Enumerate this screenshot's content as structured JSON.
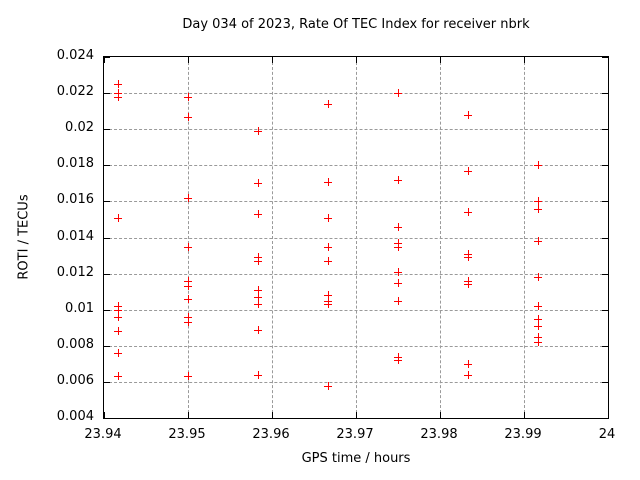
{
  "colors": {
    "marker": "#ff0000",
    "grid": "#9a9a9a",
    "axis": "#000000",
    "background": "#ffffff",
    "text": "#000000"
  },
  "chart_data": {
    "type": "scatter",
    "title": "Day 034 of 2023, Rate Of TEC Index for receiver nbrk",
    "xlabel": "GPS time / hours",
    "ylabel": "ROTI / TECUs",
    "xlim": [
      23.94,
      24
    ],
    "ylim": [
      0.004,
      0.024
    ],
    "xticks": [
      23.94,
      23.95,
      23.96,
      23.97,
      23.98,
      23.99,
      24
    ],
    "xtick_labels": [
      "23.94",
      "23.95",
      "23.96",
      "23.97",
      "23.98",
      "23.99",
      "24"
    ],
    "yticks": [
      0.004,
      0.006,
      0.008,
      0.01,
      0.012,
      0.014,
      0.016,
      0.018,
      0.02,
      0.022,
      0.024
    ],
    "ytick_labels": [
      "0.004",
      "0.006",
      "0.008",
      "0.01",
      "0.012",
      "0.014",
      "0.016",
      "0.018",
      "0.02",
      "0.022",
      "0.024"
    ],
    "grid": true,
    "legend": false,
    "marker": "plus",
    "series": [
      {
        "name": "ROTI",
        "points": [
          [
            23.9417,
            0.0225
          ],
          [
            23.9417,
            0.022
          ],
          [
            23.9417,
            0.0218
          ],
          [
            23.9417,
            0.0151
          ],
          [
            23.9417,
            0.0102
          ],
          [
            23.9417,
            0.01
          ],
          [
            23.9417,
            0.0096
          ],
          [
            23.9417,
            0.0088
          ],
          [
            23.9417,
            0.0076
          ],
          [
            23.9417,
            0.0063
          ],
          [
            23.95,
            0.0218
          ],
          [
            23.95,
            0.0207
          ],
          [
            23.95,
            0.0162
          ],
          [
            23.95,
            0.0135
          ],
          [
            23.95,
            0.0116
          ],
          [
            23.95,
            0.0113
          ],
          [
            23.95,
            0.0106
          ],
          [
            23.95,
            0.0096
          ],
          [
            23.95,
            0.0093
          ],
          [
            23.95,
            0.0063
          ],
          [
            23.9583,
            0.0199
          ],
          [
            23.9583,
            0.017
          ],
          [
            23.9583,
            0.0153
          ],
          [
            23.9583,
            0.0129
          ],
          [
            23.9583,
            0.0127
          ],
          [
            23.9583,
            0.0111
          ],
          [
            23.9583,
            0.0107
          ],
          [
            23.9583,
            0.0103
          ],
          [
            23.9583,
            0.0089
          ],
          [
            23.9583,
            0.0064
          ],
          [
            23.9667,
            0.0214
          ],
          [
            23.9667,
            0.0171
          ],
          [
            23.9667,
            0.0151
          ],
          [
            23.9667,
            0.0135
          ],
          [
            23.9667,
            0.0127
          ],
          [
            23.9667,
            0.0108
          ],
          [
            23.9667,
            0.0105
          ],
          [
            23.9667,
            0.0103
          ],
          [
            23.9667,
            0.0058
          ],
          [
            23.975,
            0.022
          ],
          [
            23.975,
            0.0172
          ],
          [
            23.975,
            0.0146
          ],
          [
            23.975,
            0.0137
          ],
          [
            23.975,
            0.0135
          ],
          [
            23.975,
            0.0121
          ],
          [
            23.975,
            0.0115
          ],
          [
            23.975,
            0.0105
          ],
          [
            23.975,
            0.0074
          ],
          [
            23.975,
            0.0072
          ],
          [
            23.9833,
            0.0208
          ],
          [
            23.9833,
            0.0177
          ],
          [
            23.9833,
            0.0154
          ],
          [
            23.9833,
            0.0131
          ],
          [
            23.9833,
            0.0129
          ],
          [
            23.9833,
            0.0116
          ],
          [
            23.9833,
            0.0114
          ],
          [
            23.9833,
            0.007
          ],
          [
            23.9833,
            0.0064
          ],
          [
            23.9917,
            0.018
          ],
          [
            23.9917,
            0.016
          ],
          [
            23.9917,
            0.0156
          ],
          [
            23.9917,
            0.0138
          ],
          [
            23.9917,
            0.0118
          ],
          [
            23.9917,
            0.0102
          ],
          [
            23.9917,
            0.0095
          ],
          [
            23.9917,
            0.0091
          ],
          [
            23.9917,
            0.0085
          ],
          [
            23.9917,
            0.0082
          ]
        ]
      }
    ]
  }
}
